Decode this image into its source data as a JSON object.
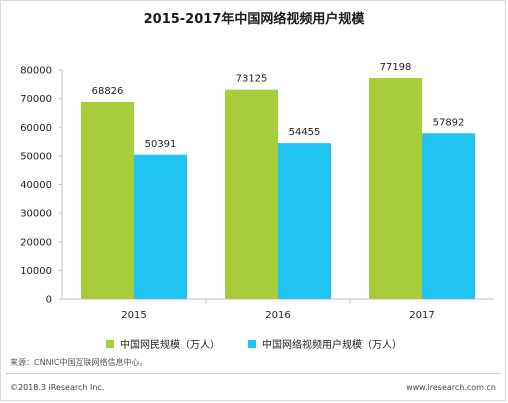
{
  "chart_data": {
    "type": "bar",
    "title": "2015-2017年中国网络视频用户规模",
    "categories": [
      "2015",
      "2016",
      "2017"
    ],
    "series": [
      {
        "name": "中国网民规模（万人）",
        "values": [
          68826,
          73125,
          77198
        ],
        "color": "#a6cd3a"
      },
      {
        "name": "中国网络视频用户规模（万人）",
        "values": [
          50391,
          54455,
          57892
        ],
        "color": "#1fc5f0"
      }
    ],
    "ylim": [
      0,
      80000
    ],
    "yticks": [
      "0",
      "10000",
      "20000",
      "30000",
      "40000",
      "50000",
      "60000",
      "70000",
      "80000"
    ],
    "grid": false,
    "legend_position": "bottom-center"
  },
  "footer": {
    "source": "来源：CNNIC中国互联网络信息中心。",
    "copyright": "©2018.3 iResearch Inc.",
    "website": "www.iresearch.com.cn"
  }
}
